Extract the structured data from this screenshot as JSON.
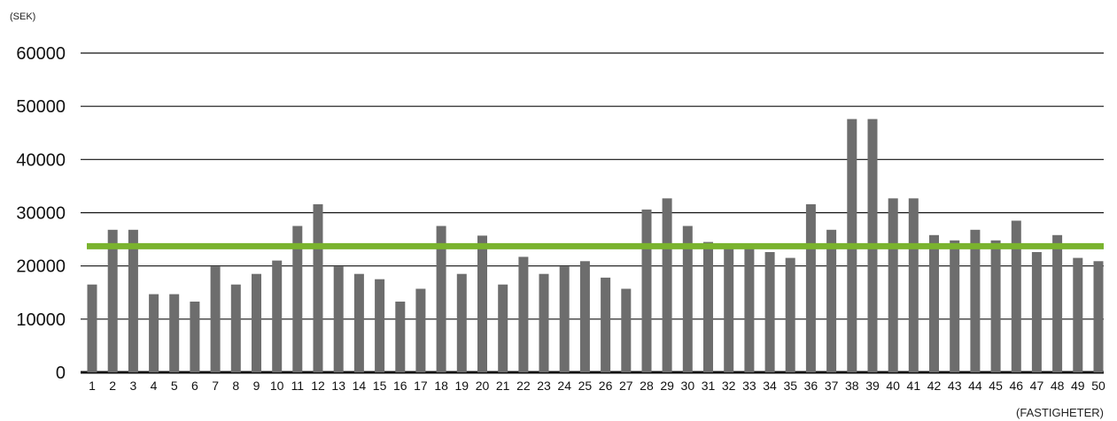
{
  "chart_data": {
    "type": "bar",
    "ylabel": "(SEK)",
    "xlabel": "(FASTIGHETER)",
    "ylim": [
      0,
      60000
    ],
    "yticks": [
      0,
      10000,
      20000,
      30000,
      40000,
      50000,
      60000
    ],
    "grid": true,
    "categories": [
      "1",
      "2",
      "3",
      "4",
      "5",
      "6",
      "7",
      "8",
      "9",
      "10",
      "11",
      "12",
      "13",
      "14",
      "15",
      "16",
      "17",
      "18",
      "19",
      "20",
      "21",
      "22",
      "23",
      "24",
      "25",
      "26",
      "27",
      "28",
      "29",
      "30",
      "31",
      "32",
      "33",
      "34",
      "35",
      "36",
      "37",
      "38",
      "39",
      "40",
      "41",
      "42",
      "43",
      "44",
      "45",
      "46",
      "47",
      "48",
      "49",
      "50"
    ],
    "values": [
      16500,
      26800,
      26800,
      14700,
      14700,
      13300,
      19900,
      16500,
      18500,
      21000,
      27500,
      31600,
      19900,
      18500,
      17500,
      13300,
      15700,
      27500,
      18500,
      25700,
      16500,
      21700,
      18500,
      19900,
      20900,
      17800,
      15700,
      30600,
      32700,
      27500,
      24500,
      24000,
      24000,
      22600,
      21500,
      31600,
      26800,
      47600,
      47600,
      32700,
      32700,
      25800,
      24800,
      26800,
      24800,
      28500,
      22600,
      25800,
      21500,
      20900
    ],
    "reference_line": {
      "value": 23700,
      "color": "#7ab32e"
    },
    "bar_color": "#6d6d6d",
    "axis_color": "#111111"
  }
}
